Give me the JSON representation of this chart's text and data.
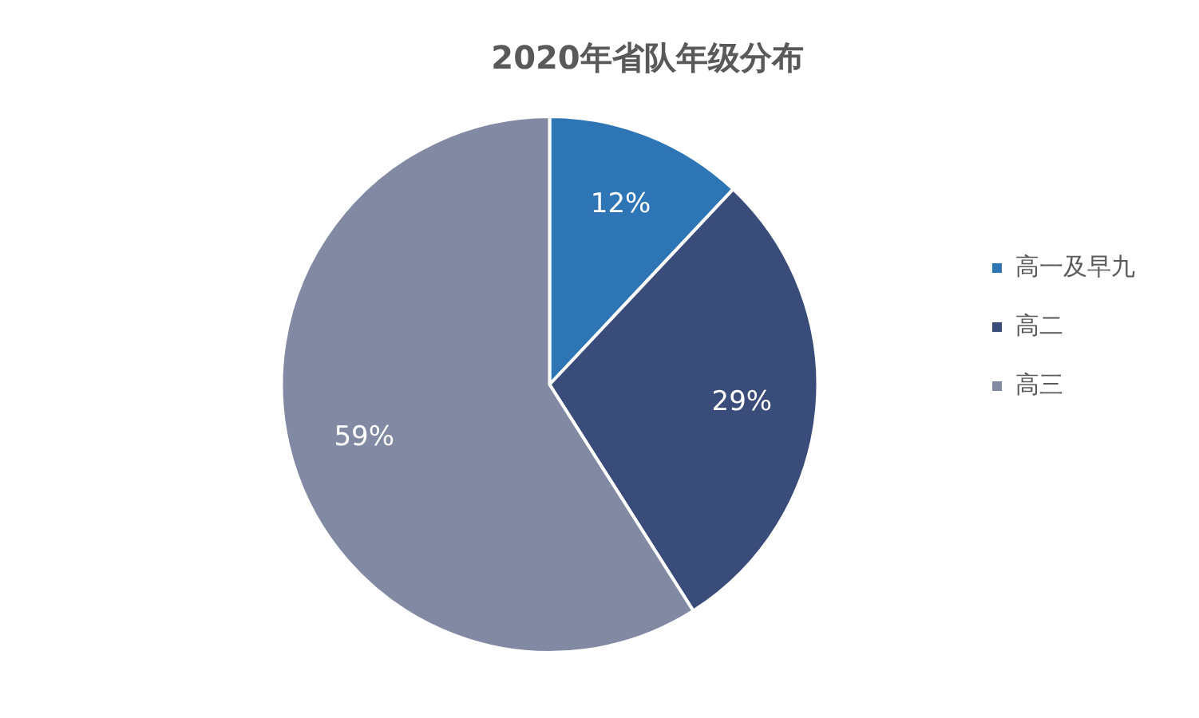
{
  "chart_data": {
    "type": "pie",
    "title": "2020年省队年级分布",
    "categories": [
      "高一及早九",
      "高二",
      "高三"
    ],
    "values": [
      12,
      29,
      59
    ],
    "value_labels": [
      "12%",
      "29%",
      "59%"
    ],
    "colors": [
      "#2e75b6",
      "#3a4c7a",
      "#8289a3"
    ],
    "legend": "right"
  }
}
